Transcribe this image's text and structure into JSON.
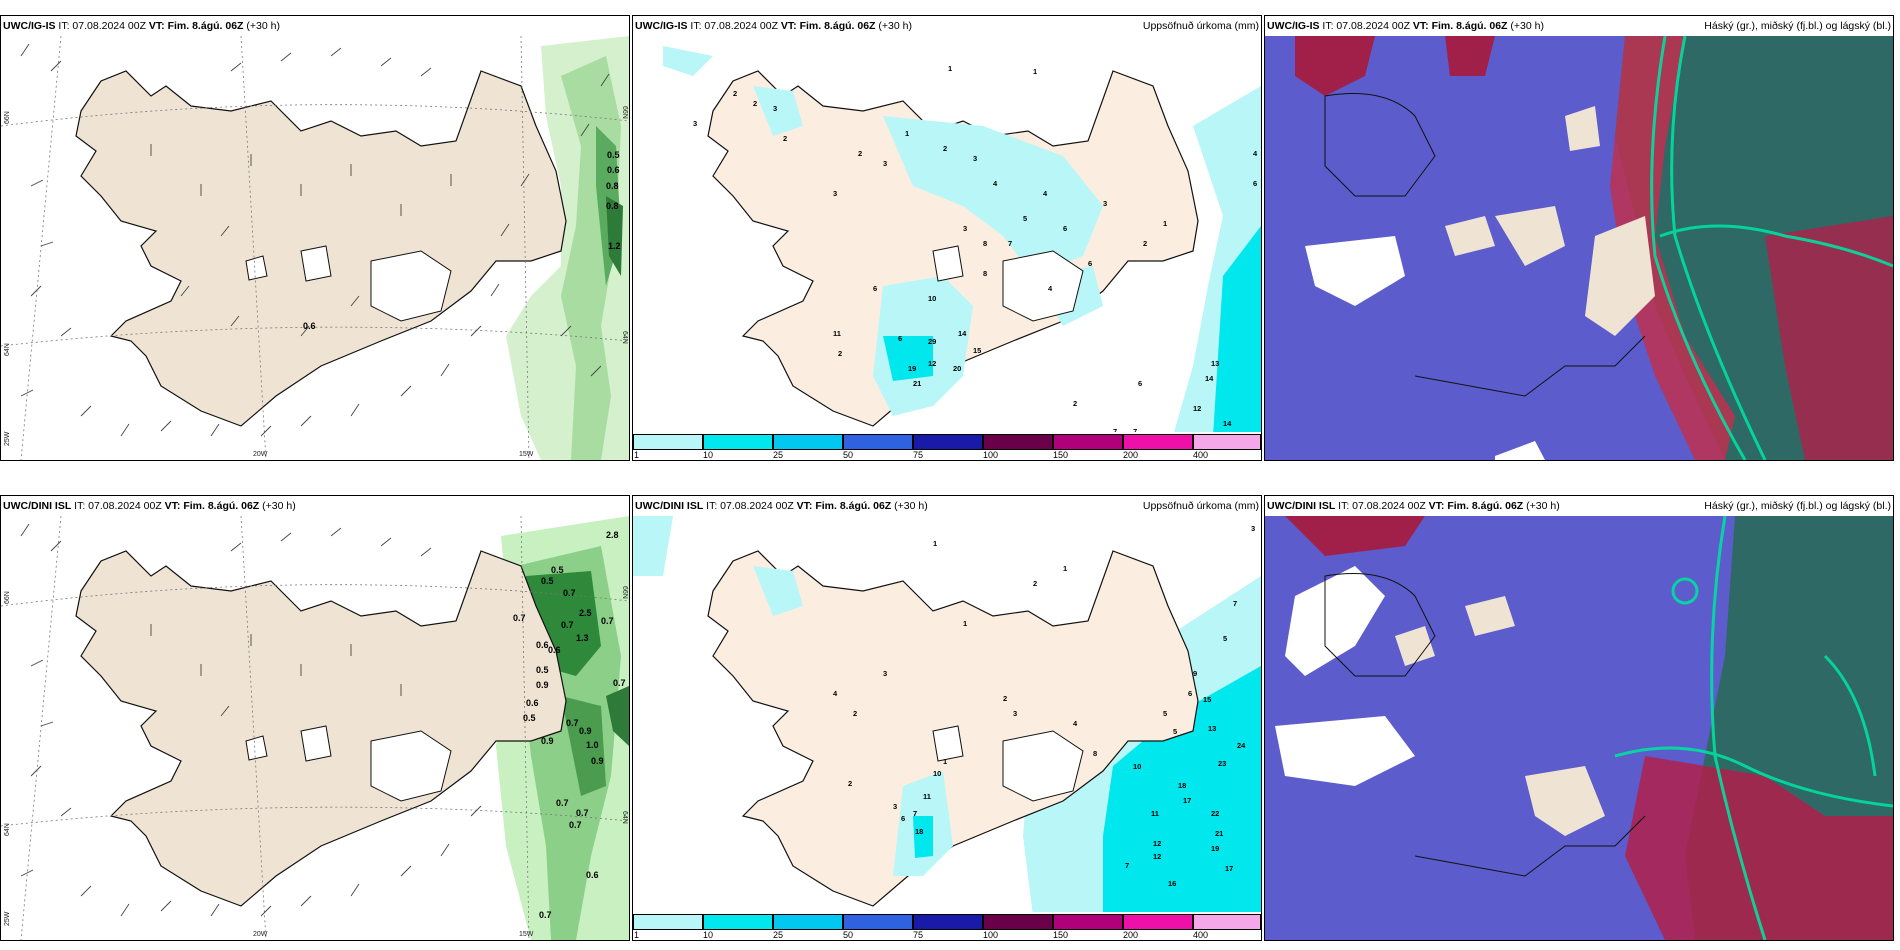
{
  "panels": [
    {
      "model": "UWC/IG-IS",
      "it": "IT: 07.08.2024 00Z",
      "vt_label": "VT:",
      "vt": "Fim. 8.ágú. 06Z",
      "lead": "(+30 h)",
      "right_title": ""
    },
    {
      "model": "UWC/IG-IS",
      "it": "IT: 07.08.2024 00Z",
      "vt_label": "VT:",
      "vt": "Fim. 8.ágú. 06Z",
      "lead": "(+30 h)",
      "right_title": "Uppsöfnuð úrkoma (mm)"
    },
    {
      "model": "UWC/IG-IS",
      "it": "IT: 07.08.2024 00Z",
      "vt_label": "VT:",
      "vt": "Fim. 8.ágú. 06Z",
      "lead": "(+30 h)",
      "right_title": "Háský (gr.), miðský (fj.bl.) og lágský (bl.)"
    },
    {
      "model": "UWC/DINI ISL",
      "it": "IT: 07.08.2024 00Z",
      "vt_label": "VT:",
      "vt": "Fim. 8.ágú. 06Z",
      "lead": "(+30 h)",
      "right_title": ""
    },
    {
      "model": "UWC/DINI ISL",
      "it": "IT: 07.08.2024 00Z",
      "vt_label": "VT:",
      "vt": "Fim. 8.ágú. 06Z",
      "lead": "(+30 h)",
      "right_title": "Uppsöfnuð úrkoma (mm)"
    },
    {
      "model": "UWC/DINI ISL",
      "it": "IT: 07.08.2024 00Z",
      "vt_label": "VT:",
      "vt": "Fim. 8.ágú. 06Z",
      "lead": "(+30 h)",
      "right_title": "Háský (gr.), miðský (fj.bl.) og lágský (bl.)"
    }
  ],
  "grid_labels": {
    "lat66": "66N",
    "lat64": "64N",
    "lon25": "25W",
    "lon20": "20W",
    "lon15": "15W",
    "east66": "66N",
    "east64": "64N"
  },
  "precip_colorbar": {
    "labels": [
      "1",
      "10",
      "25",
      "50",
      "75",
      "100",
      "150",
      "200",
      "400"
    ],
    "colors": [
      "#b8f6f8",
      "#00e8ee",
      "#00c8f0",
      "#2f62e0",
      "#1a1aa8",
      "#6a0048",
      "#b0007a",
      "#ee10a8",
      "#f4a8ea"
    ]
  },
  "colors": {
    "land": "#efe3d3",
    "sea": "#ffffff",
    "green_light": "#b8e8b0",
    "green_mid": "#6cbf6a",
    "green_dark": "#2e8a3a",
    "cyan_light": "#b8f6f8",
    "cyan": "#00e8ee",
    "cloud_blue": "#5c5ccc",
    "cloud_red": "#b0204a",
    "cloud_teal": "#2a6a5a"
  },
  "wind_labels_ig": [
    "0.5",
    "0.6",
    "0.8",
    "0.8",
    "1.2",
    "0.6"
  ],
  "wind_labels_dini": [
    "2.8",
    "0.5",
    "0.5",
    "0.7",
    "0.7",
    "2.5",
    "0.7",
    "0.7",
    "1.3",
    "0.6",
    "0.6",
    "0.5",
    "0.9",
    "0.6",
    "0.5",
    "0.7",
    "0.9",
    "0.9",
    "1.0",
    "0.9",
    "0.7",
    "0.7",
    "0.7",
    "0.7",
    "0.6",
    "0.7"
  ],
  "precip_labels_ig": [
    "1",
    "1",
    "2",
    "2",
    "3",
    "3",
    "2",
    "2",
    "4",
    "6",
    "3",
    "1",
    "2",
    "3",
    "4",
    "3",
    "5",
    "6",
    "3",
    "6",
    "8",
    "7",
    "10",
    "6",
    "11",
    "29",
    "14",
    "15",
    "20",
    "12",
    "19",
    "21",
    "13",
    "14",
    "12",
    "14",
    "7",
    "7",
    "6",
    "2",
    "1",
    "2",
    "4",
    "6",
    "8",
    "4",
    "3",
    "2",
    "1"
  ],
  "precip_labels_dini": [
    "1",
    "3",
    "7",
    "5",
    "2",
    "1",
    "4",
    "2",
    "3",
    "1",
    "2",
    "3",
    "4",
    "6",
    "15",
    "24",
    "23",
    "18",
    "17",
    "22",
    "21",
    "19",
    "17",
    "16",
    "12",
    "12",
    "11",
    "7",
    "10",
    "7",
    "11",
    "3",
    "18",
    "6",
    "2",
    "1",
    "10",
    "13",
    "9",
    "5",
    "5",
    "8"
  ]
}
